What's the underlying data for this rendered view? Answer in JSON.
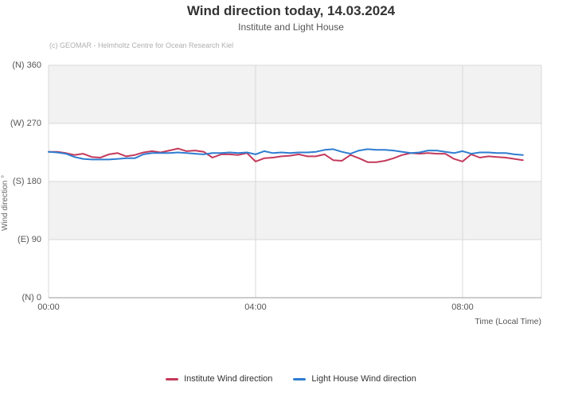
{
  "header": {
    "title": "Wind direction today, 14.03.2024",
    "subtitle": "Institute and Light House",
    "copyright": "(c) GEOMAR - Helmholtz Centre for Ocean Research Kiel"
  },
  "chart_data": {
    "type": "line",
    "title": "Wind direction today, 14.03.2024",
    "subtitle": "Institute and Light House",
    "xlabel": "Time (Local Time)",
    "ylabel": "Wind direction °",
    "ylim": [
      0,
      360
    ],
    "x_start": "00:00",
    "x_end": "09:10",
    "x_step_minutes": 10,
    "grid": "on",
    "legend_position": "bottom-center",
    "yaxis_ticks": [
      {
        "value": 360,
        "label": "(N) 360"
      },
      {
        "value": 270,
        "label": "(W) 270"
      },
      {
        "value": 180,
        "label": "(S) 180"
      },
      {
        "value": 90,
        "label": "(E) 90"
      },
      {
        "value": 0,
        "label": "(N) 0"
      }
    ],
    "xaxis_ticks": [
      {
        "hour": 0,
        "label": "00:00"
      },
      {
        "hour": 4,
        "label": "04:00"
      },
      {
        "hour": 8,
        "label": "08:00"
      }
    ],
    "grid_hours": [
      4,
      8
    ],
    "plot_bands": [
      {
        "from": 270,
        "to": 360
      },
      {
        "from": 90,
        "to": 180
      }
    ],
    "series": [
      {
        "name": "Institute Wind direction",
        "color": "#c43a5c",
        "values": [
          226,
          226,
          224,
          221,
          223,
          218,
          217,
          222,
          224,
          219,
          221,
          225,
          227,
          225,
          228,
          231,
          227,
          228,
          226,
          217,
          222,
          222,
          221,
          224,
          211,
          216,
          217,
          219,
          220,
          222,
          219,
          219,
          222,
          213,
          212,
          221,
          216,
          210,
          210,
          212,
          216,
          221,
          224,
          223,
          224,
          223,
          223,
          215,
          211,
          222,
          217,
          219,
          218,
          217,
          215,
          213
        ]
      },
      {
        "name": "Light House Wind direction",
        "color": "#2e7dd1",
        "values": [
          226,
          225,
          223,
          218,
          215,
          214,
          214,
          214,
          215,
          216,
          216,
          222,
          224,
          224,
          224,
          225,
          224,
          223,
          222,
          224,
          224,
          225,
          224,
          225,
          222,
          227,
          224,
          225,
          224,
          225,
          225,
          226,
          229,
          230,
          226,
          223,
          228,
          230,
          229,
          229,
          228,
          226,
          224,
          225,
          228,
          228,
          226,
          224,
          227,
          223,
          225,
          225,
          224,
          224,
          222,
          221
        ]
      }
    ]
  },
  "legend": {
    "items": [
      {
        "label": "Institute Wind direction",
        "color": "#c43a5c"
      },
      {
        "label": "Light House Wind direction",
        "color": "#2e7dd1"
      }
    ]
  },
  "theme": {
    "band_color": "#f2f2f2",
    "grid_color": "#d8d8d8",
    "axis_line_color": "#999999",
    "institute_color": "#c43a5c",
    "lighthouse_color": "#2e7dd1"
  }
}
